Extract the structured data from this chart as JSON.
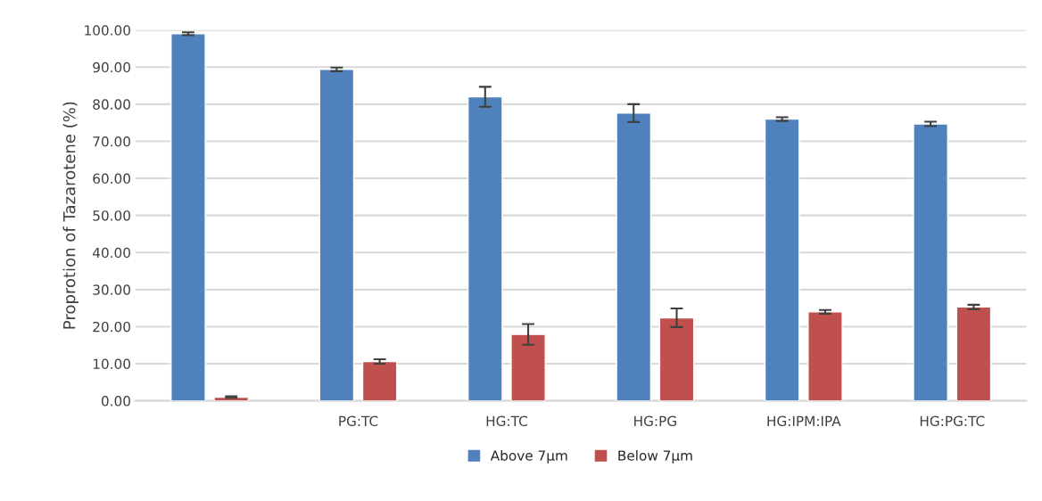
{
  "chart_data": {
    "type": "bar",
    "ylabel": "Proprotion of Tazarotene (%)",
    "categories": [
      null,
      "PG:TC",
      "HG:TC",
      "HG:PG",
      "HG:IPM:IPA",
      "HG:PG:TC"
    ],
    "series": [
      {
        "name": "Above 7μm",
        "color": "#4f81bd",
        "values": [
          99.0,
          89.4,
          82.0,
          77.6,
          76.0,
          74.7
        ],
        "errors": [
          0.4,
          0.5,
          2.7,
          2.4,
          0.5,
          0.6
        ]
      },
      {
        "name": "Below 7μm",
        "color": "#c0504d",
        "values": [
          1.0,
          10.6,
          17.9,
          22.4,
          24.0,
          25.3
        ],
        "errors": [
          0.2,
          0.6,
          2.8,
          2.5,
          0.5,
          0.6
        ]
      }
    ],
    "ylim": [
      0,
      100
    ],
    "yticks": [
      {
        "value": 0,
        "label": "0.00"
      },
      {
        "value": 10,
        "label": "10.00"
      },
      {
        "value": 20,
        "label": "20.00"
      },
      {
        "value": 30,
        "label": "30.00"
      },
      {
        "value": 40,
        "label": "40.00"
      },
      {
        "value": 50,
        "label": "50.00"
      },
      {
        "value": 60,
        "label": "60.00"
      },
      {
        "value": 70,
        "label": "70.00"
      },
      {
        "value": 80,
        "label": "80.00"
      },
      {
        "value": 90,
        "label": "90.00"
      },
      {
        "value": 100,
        "label": "100.00"
      }
    ],
    "grid": "y",
    "legend": "bottom"
  }
}
